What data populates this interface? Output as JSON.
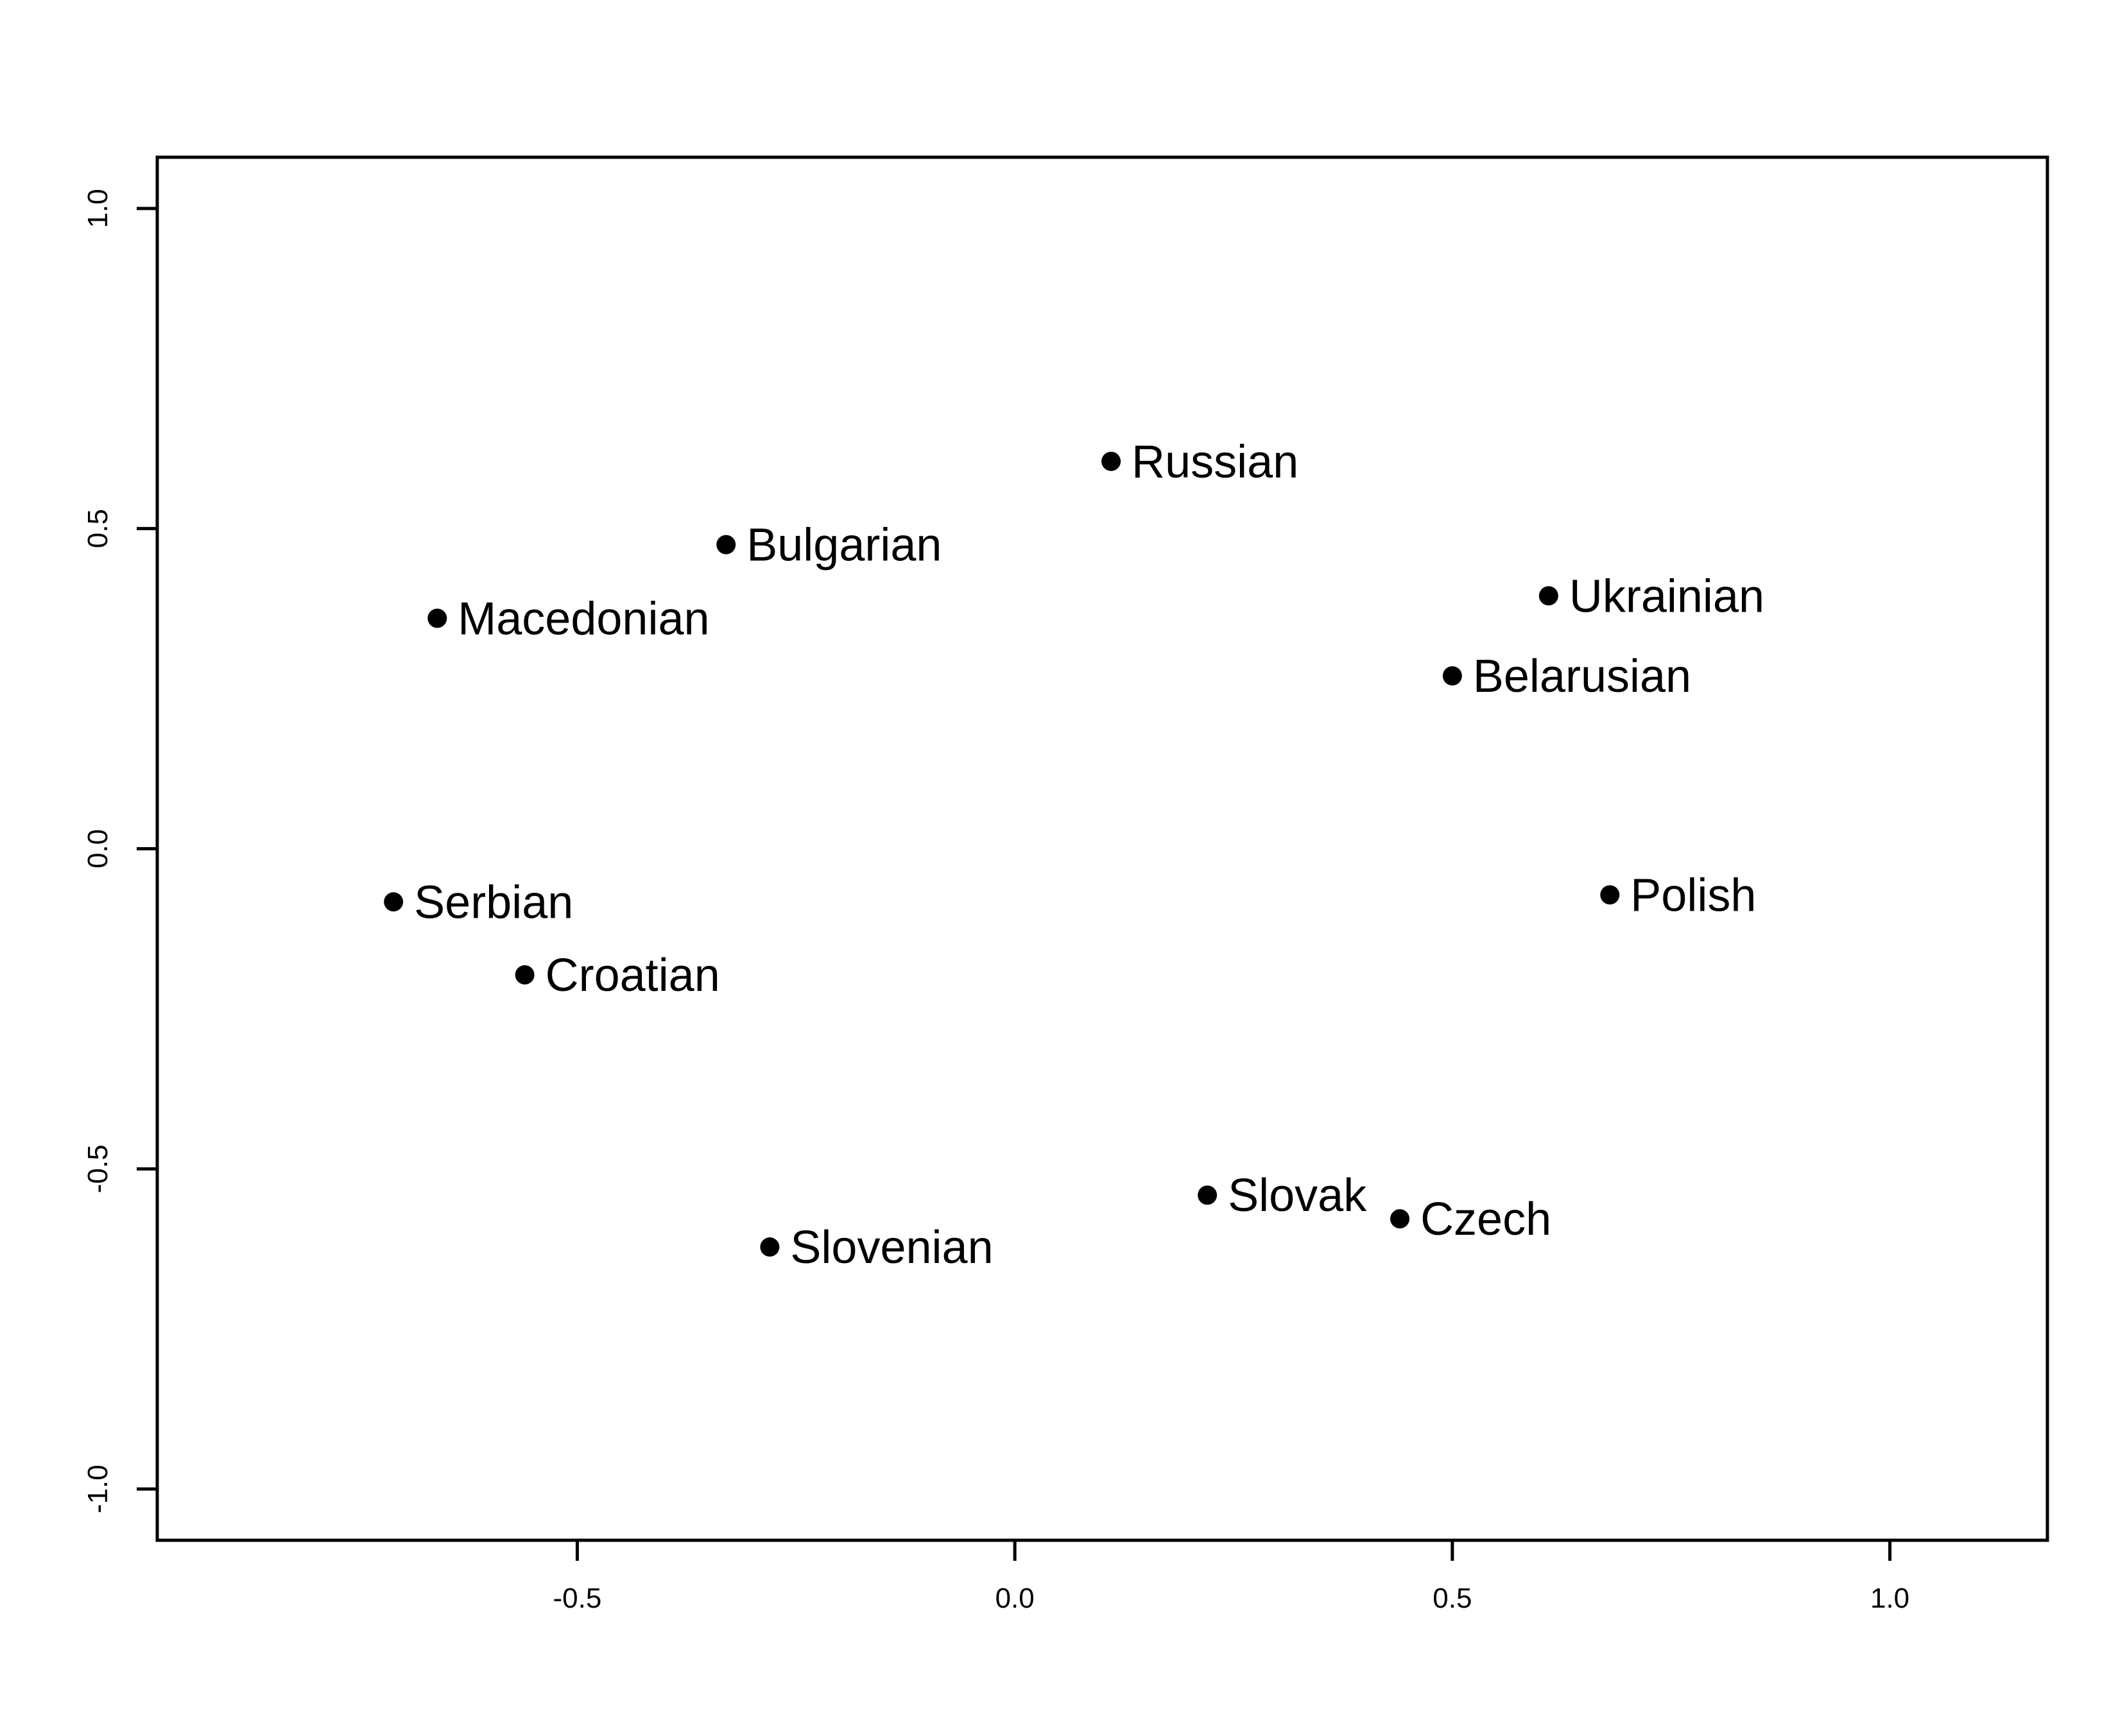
{
  "chart_data": {
    "type": "scatter",
    "title": "",
    "xlabel": "",
    "ylabel": "",
    "xlim": [
      -0.98,
      1.18
    ],
    "ylim": [
      -1.08,
      1.08
    ],
    "xticks": [
      -0.5,
      0.0,
      0.5,
      1.0
    ],
    "yticks": [
      -1.0,
      -0.5,
      0.0,
      0.5,
      1.0
    ],
    "xtick_labels": [
      "-0.5",
      "0.0",
      "0.5",
      "1.0"
    ],
    "ytick_labels": [
      "-1.0",
      "-0.5",
      "0.0",
      "0.5",
      "1.0"
    ],
    "grid": false,
    "legend": false,
    "marker_color": "#000000",
    "points": [
      {
        "label": "Russian",
        "x": 0.11,
        "y": 0.605
      },
      {
        "label": "Bulgarian",
        "x": -0.33,
        "y": 0.475
      },
      {
        "label": "Macedonian",
        "x": -0.66,
        "y": 0.36
      },
      {
        "label": "Ukrainian",
        "x": 0.61,
        "y": 0.395
      },
      {
        "label": "Belarusian",
        "x": 0.5,
        "y": 0.27
      },
      {
        "label": "Serbian",
        "x": -0.71,
        "y": -0.083
      },
      {
        "label": "Croatian",
        "x": -0.56,
        "y": -0.197
      },
      {
        "label": "Polish",
        "x": 0.68,
        "y": -0.072
      },
      {
        "label": "Slovak",
        "x": 0.22,
        "y": -0.541
      },
      {
        "label": "Czech",
        "x": 0.44,
        "y": -0.578
      },
      {
        "label": "Slovenian",
        "x": -0.28,
        "y": -0.622
      }
    ]
  }
}
